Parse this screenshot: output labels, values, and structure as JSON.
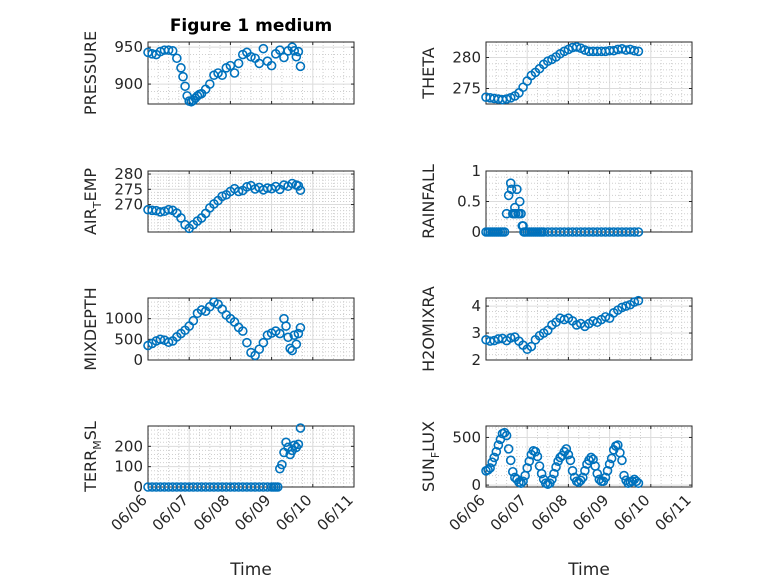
{
  "figure_title": "Figure 1 medium",
  "chart_data": [
    {
      "type": "scatter",
      "id": "pressure",
      "ylabel": "PRESSURE",
      "ylim": [
        873,
        957
      ],
      "yticks": [
        900,
        950
      ],
      "tick_labels": [
        "900",
        "950"
      ],
      "title": "Figure 1 medium",
      "series": [
        {
          "x": [
            0.0,
            0.1,
            0.2,
            0.3,
            0.4,
            0.5,
            0.6,
            0.7,
            0.8,
            0.85,
            0.9,
            0.95,
            1.0,
            1.05,
            1.1,
            1.15,
            1.2,
            1.25,
            1.3,
            1.4,
            1.5,
            1.6,
            1.7,
            1.8,
            1.9,
            2.0,
            2.1,
            2.2,
            2.3,
            2.4,
            2.5,
            2.6,
            2.7,
            2.8,
            2.9,
            3.0,
            3.1,
            3.2,
            3.3,
            3.4,
            3.5,
            3.55,
            3.6,
            3.65,
            3.7
          ],
          "y": [
            943,
            941,
            940,
            944,
            946,
            946,
            945,
            935,
            922,
            910,
            897,
            884,
            877,
            876,
            878,
            881,
            884,
            886,
            887,
            893,
            900,
            912,
            915,
            912,
            922,
            925,
            915,
            928,
            940,
            943,
            937,
            935,
            928,
            948,
            931,
            925,
            941,
            946,
            936,
            945,
            950,
            945,
            937,
            944,
            924
          ]
        }
      ]
    },
    {
      "type": "scatter",
      "id": "theta",
      "ylabel": "THETA",
      "ylim": [
        272.5,
        282.5
      ],
      "yticks": [
        275,
        280
      ],
      "tick_labels": [
        "275",
        "280"
      ],
      "series": [
        {
          "x": [
            0.0,
            0.1,
            0.2,
            0.3,
            0.4,
            0.5,
            0.6,
            0.7,
            0.8,
            0.9,
            1.0,
            1.1,
            1.2,
            1.3,
            1.4,
            1.5,
            1.6,
            1.7,
            1.8,
            1.9,
            2.0,
            2.1,
            2.2,
            2.3,
            2.4,
            2.5,
            2.6,
            2.7,
            2.8,
            2.9,
            3.0,
            3.1,
            3.2,
            3.3,
            3.4,
            3.5,
            3.6,
            3.7
          ],
          "y": [
            273.6,
            273.5,
            273.4,
            273.3,
            273.2,
            273.3,
            273.5,
            273.8,
            274.3,
            275.2,
            276.2,
            277.1,
            277.6,
            278.2,
            278.9,
            279.4,
            279.7,
            280.1,
            280.6,
            281.0,
            281.3,
            281.6,
            281.7,
            281.5,
            281.2,
            281.0,
            281.0,
            281.0,
            281.0,
            281.0,
            281.1,
            281.1,
            281.3,
            281.4,
            281.2,
            281.3,
            281.1,
            281.0
          ]
        }
      ]
    },
    {
      "type": "scatter",
      "id": "air_temp",
      "ylabel": "AIR_TEMP",
      "ylim": [
        261,
        281
      ],
      "yticks": [
        270,
        275,
        280
      ],
      "tick_labels": [
        "270",
        "275",
        "280"
      ],
      "series": [
        {
          "x": [
            0.0,
            0.1,
            0.2,
            0.3,
            0.4,
            0.5,
            0.6,
            0.7,
            0.8,
            0.9,
            1.0,
            1.1,
            1.2,
            1.3,
            1.4,
            1.5,
            1.6,
            1.7,
            1.8,
            1.9,
            2.0,
            2.1,
            2.2,
            2.3,
            2.4,
            2.5,
            2.6,
            2.7,
            2.8,
            2.9,
            3.0,
            3.1,
            3.2,
            3.3,
            3.4,
            3.5,
            3.6,
            3.65,
            3.7
          ],
          "y": [
            268.3,
            268.1,
            268.0,
            267.6,
            267.8,
            268.3,
            268.1,
            267.2,
            265.6,
            263.4,
            262.2,
            263.4,
            264.6,
            265.6,
            267.1,
            268.9,
            270.2,
            271.3,
            272.7,
            273.2,
            274.3,
            275.2,
            274.3,
            274.6,
            275.8,
            276.2,
            275.1,
            275.6,
            274.8,
            275.4,
            275.2,
            275.9,
            275.0,
            276.4,
            276.0,
            276.9,
            276.4,
            276.1,
            274.7
          ]
        }
      ]
    },
    {
      "type": "scatter",
      "id": "rainfall",
      "ylabel": "RAINFALL",
      "ylim": [
        0,
        1
      ],
      "yticks": [
        0,
        0.5,
        1
      ],
      "tick_labels": [
        "0",
        "0.5",
        "1"
      ],
      "series": [
        {
          "x": [
            0.0,
            0.05,
            0.1,
            0.15,
            0.2,
            0.25,
            0.3,
            0.35,
            0.4,
            0.45,
            0.5,
            0.55,
            0.6,
            0.62,
            0.65,
            0.68,
            0.7,
            0.72,
            0.75,
            0.78,
            0.8,
            0.82,
            0.85,
            0.88,
            0.9,
            0.92,
            0.95,
            1.0,
            1.05,
            1.1,
            1.15,
            1.2,
            1.25,
            1.3,
            1.35,
            1.4,
            1.5,
            1.6,
            1.7,
            1.8,
            1.9,
            2.0,
            2.1,
            2.2,
            2.3,
            2.4,
            2.5,
            2.6,
            2.7,
            2.8,
            2.9,
            3.0,
            3.1,
            3.2,
            3.3,
            3.4,
            3.5,
            3.6,
            3.7
          ],
          "y": [
            0,
            0,
            0,
            0,
            0,
            0,
            0,
            0,
            0,
            0,
            0.3,
            0.6,
            0.8,
            0.7,
            0.3,
            0.3,
            0.4,
            0.3,
            0.7,
            0.3,
            0.3,
            0.5,
            0.3,
            0.1,
            0.1,
            0,
            0,
            0,
            0,
            0,
            0,
            0,
            0,
            0,
            0,
            0,
            0,
            0,
            0,
            0,
            0,
            0,
            0,
            0,
            0,
            0,
            0,
            0,
            0,
            0,
            0,
            0,
            0,
            0,
            0,
            0,
            0,
            0,
            0
          ]
        }
      ]
    },
    {
      "type": "scatter",
      "id": "mixdepth",
      "ylabel": "MIXDEPTH",
      "ylim": [
        0,
        1500
      ],
      "yticks": [
        0,
        500,
        1000
      ],
      "tick_labels": [
        "0",
        "500",
        "1000"
      ],
      "series": [
        {
          "x": [
            0.0,
            0.1,
            0.2,
            0.3,
            0.4,
            0.5,
            0.6,
            0.7,
            0.8,
            0.9,
            1.0,
            1.1,
            1.2,
            1.3,
            1.4,
            1.5,
            1.6,
            1.7,
            1.8,
            1.9,
            2.0,
            2.1,
            2.2,
            2.3,
            2.4,
            2.5,
            2.6,
            2.7,
            2.8,
            2.9,
            3.0,
            3.1,
            3.2,
            3.3,
            3.35,
            3.4,
            3.45,
            3.5,
            3.55,
            3.6,
            3.65,
            3.7
          ],
          "y": [
            350,
            400,
            460,
            500,
            480,
            430,
            460,
            560,
            640,
            720,
            820,
            950,
            1130,
            1210,
            1180,
            1290,
            1400,
            1350,
            1230,
            1090,
            1000,
            920,
            790,
            700,
            420,
            180,
            110,
            260,
            420,
            600,
            650,
            700,
            640,
            1000,
            820,
            550,
            280,
            230,
            600,
            380,
            640,
            780
          ]
        }
      ]
    },
    {
      "type": "scatter",
      "id": "h2omixra",
      "ylabel": "H2OMIXRA",
      "ylim": [
        2,
        4.3
      ],
      "yticks": [
        2,
        3,
        4
      ],
      "tick_labels": [
        "2",
        "3",
        "4"
      ],
      "series": [
        {
          "x": [
            0.0,
            0.1,
            0.2,
            0.3,
            0.4,
            0.5,
            0.6,
            0.7,
            0.8,
            0.9,
            1.0,
            1.1,
            1.2,
            1.3,
            1.4,
            1.5,
            1.6,
            1.7,
            1.8,
            1.9,
            2.0,
            2.1,
            2.2,
            2.3,
            2.4,
            2.5,
            2.6,
            2.7,
            2.8,
            2.9,
            3.0,
            3.1,
            3.2,
            3.3,
            3.4,
            3.5,
            3.6,
            3.7
          ],
          "y": [
            2.75,
            2.7,
            2.72,
            2.78,
            2.8,
            2.72,
            2.82,
            2.85,
            2.7,
            2.55,
            2.4,
            2.5,
            2.75,
            2.9,
            3.0,
            3.1,
            3.3,
            3.4,
            3.55,
            3.5,
            3.55,
            3.45,
            3.3,
            3.35,
            3.25,
            3.35,
            3.45,
            3.4,
            3.5,
            3.6,
            3.55,
            3.75,
            3.85,
            3.95,
            4.0,
            4.05,
            4.15,
            4.2
          ]
        }
      ]
    },
    {
      "type": "scatter",
      "id": "terr_msl",
      "ylabel": "TERR_MSL",
      "ylim": [
        0,
        300
      ],
      "yticks": [
        0,
        100,
        200
      ],
      "tick_labels": [
        "0",
        "100",
        "200"
      ],
      "series": [
        {
          "x": [
            0.0,
            0.1,
            0.2,
            0.3,
            0.4,
            0.5,
            0.6,
            0.7,
            0.8,
            0.9,
            1.0,
            1.1,
            1.2,
            1.3,
            1.4,
            1.5,
            1.6,
            1.7,
            1.8,
            1.9,
            2.0,
            2.1,
            2.2,
            2.3,
            2.4,
            2.5,
            2.6,
            2.7,
            2.8,
            2.9,
            3.0,
            3.05,
            3.1,
            3.15,
            3.2,
            3.25,
            3.3,
            3.35,
            3.4,
            3.45,
            3.5,
            3.55,
            3.6,
            3.65,
            3.7
          ],
          "y": [
            0,
            0,
            0,
            0,
            0,
            0,
            0,
            0,
            0,
            0,
            0,
            0,
            0,
            0,
            0,
            0,
            0,
            0,
            0,
            0,
            0,
            0,
            0,
            0,
            0,
            0,
            0,
            0,
            0,
            0,
            0,
            0,
            0,
            0,
            90,
            110,
            170,
            220,
            195,
            160,
            180,
            205,
            195,
            210,
            290
          ]
        }
      ]
    },
    {
      "type": "scatter",
      "id": "sun_flux",
      "ylabel": "SUN_FLUX",
      "ylim": [
        -20,
        620
      ],
      "yticks": [
        0,
        500
      ],
      "tick_labels": [
        "0",
        "500"
      ],
      "series": [
        {
          "x": [
            0.0,
            0.05,
            0.1,
            0.15,
            0.2,
            0.25,
            0.3,
            0.35,
            0.4,
            0.45,
            0.5,
            0.55,
            0.6,
            0.65,
            0.7,
            0.75,
            0.8,
            0.85,
            0.9,
            0.95,
            1.0,
            1.05,
            1.1,
            1.15,
            1.2,
            1.25,
            1.3,
            1.35,
            1.4,
            1.45,
            1.5,
            1.55,
            1.6,
            1.65,
            1.7,
            1.75,
            1.8,
            1.85,
            1.9,
            1.95,
            2.0,
            2.05,
            2.1,
            2.15,
            2.2,
            2.25,
            2.3,
            2.35,
            2.4,
            2.45,
            2.5,
            2.55,
            2.6,
            2.65,
            2.7,
            2.75,
            2.8,
            2.85,
            2.9,
            2.95,
            3.0,
            3.05,
            3.1,
            3.15,
            3.2,
            3.25,
            3.3,
            3.35,
            3.4,
            3.45,
            3.5,
            3.55,
            3.6,
            3.65,
            3.7
          ],
          "y": [
            150,
            160,
            180,
            240,
            290,
            350,
            420,
            480,
            540,
            550,
            520,
            380,
            260,
            140,
            80,
            60,
            30,
            20,
            40,
            100,
            180,
            250,
            320,
            360,
            350,
            300,
            200,
            120,
            60,
            20,
            10,
            20,
            60,
            120,
            190,
            250,
            290,
            310,
            350,
            380,
            320,
            260,
            150,
            80,
            40,
            30,
            50,
            80,
            150,
            220,
            260,
            290,
            270,
            200,
            120,
            60,
            40,
            40,
            80,
            150,
            220,
            280,
            370,
            410,
            420,
            340,
            260,
            100,
            50,
            20,
            30,
            40,
            60,
            40,
            20
          ]
        }
      ]
    }
  ],
  "xaxis": {
    "xlim_days": [
      0,
      5
    ],
    "tick_labels": [
      "06/06",
      "06/07",
      "06/08",
      "06/09",
      "06/10",
      "06/11"
    ],
    "xlabel": "Time"
  },
  "colors": {
    "marker": "#0072BD",
    "axis": "#262626"
  }
}
